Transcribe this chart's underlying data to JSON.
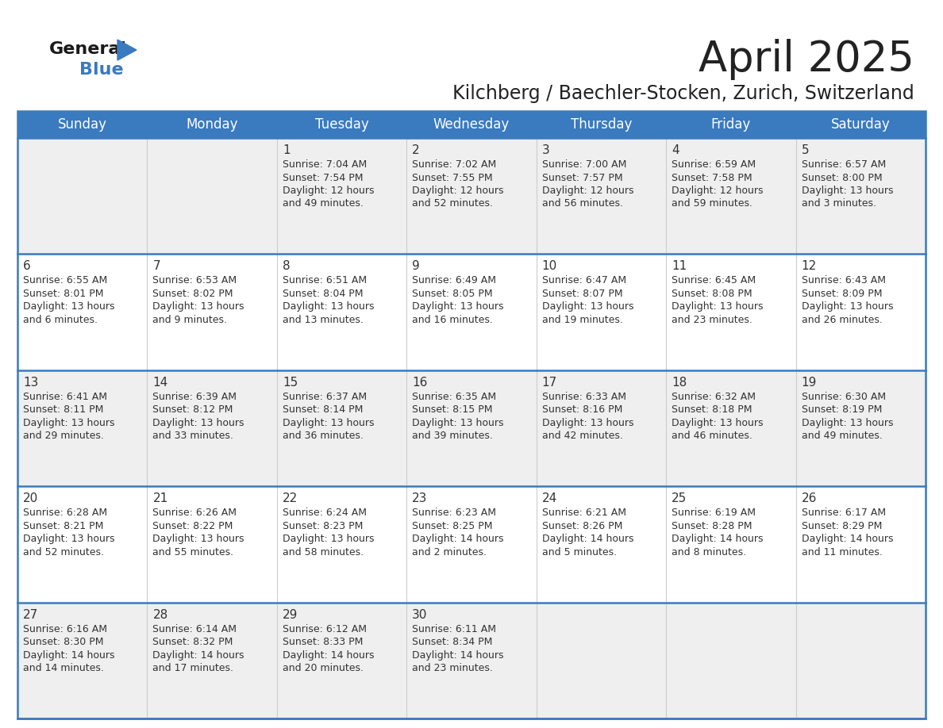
{
  "title": "April 2025",
  "subtitle": "Kilchberg / Baechler-Stocken, Zurich, Switzerland",
  "header_bg": "#3a7abf",
  "header_text": "#ffffff",
  "day_names": [
    "Sunday",
    "Monday",
    "Tuesday",
    "Wednesday",
    "Thursday",
    "Friday",
    "Saturday"
  ],
  "row_bg_odd": "#efefef",
  "row_bg_even": "#ffffff",
  "title_color": "#222222",
  "subtitle_color": "#222222",
  "day_number_color": "#333333",
  "info_color": "#333333",
  "divider_color": "#3a7abf",
  "logo_general_color": "#1a1a1a",
  "logo_blue_color": "#3a7abf",
  "logo_triangle_color": "#3a7abf",
  "calendar_data": [
    [
      {
        "day": null,
        "sunrise": null,
        "sunset": null,
        "daylight": null
      },
      {
        "day": null,
        "sunrise": null,
        "sunset": null,
        "daylight": null
      },
      {
        "day": 1,
        "sunrise": "7:04 AM",
        "sunset": "7:54 PM",
        "daylight": "12 hours\nand 49 minutes."
      },
      {
        "day": 2,
        "sunrise": "7:02 AM",
        "sunset": "7:55 PM",
        "daylight": "12 hours\nand 52 minutes."
      },
      {
        "day": 3,
        "sunrise": "7:00 AM",
        "sunset": "7:57 PM",
        "daylight": "12 hours\nand 56 minutes."
      },
      {
        "day": 4,
        "sunrise": "6:59 AM",
        "sunset": "7:58 PM",
        "daylight": "12 hours\nand 59 minutes."
      },
      {
        "day": 5,
        "sunrise": "6:57 AM",
        "sunset": "8:00 PM",
        "daylight": "13 hours\nand 3 minutes."
      }
    ],
    [
      {
        "day": 6,
        "sunrise": "6:55 AM",
        "sunset": "8:01 PM",
        "daylight": "13 hours\nand 6 minutes."
      },
      {
        "day": 7,
        "sunrise": "6:53 AM",
        "sunset": "8:02 PM",
        "daylight": "13 hours\nand 9 minutes."
      },
      {
        "day": 8,
        "sunrise": "6:51 AM",
        "sunset": "8:04 PM",
        "daylight": "13 hours\nand 13 minutes."
      },
      {
        "day": 9,
        "sunrise": "6:49 AM",
        "sunset": "8:05 PM",
        "daylight": "13 hours\nand 16 minutes."
      },
      {
        "day": 10,
        "sunrise": "6:47 AM",
        "sunset": "8:07 PM",
        "daylight": "13 hours\nand 19 minutes."
      },
      {
        "day": 11,
        "sunrise": "6:45 AM",
        "sunset": "8:08 PM",
        "daylight": "13 hours\nand 23 minutes."
      },
      {
        "day": 12,
        "sunrise": "6:43 AM",
        "sunset": "8:09 PM",
        "daylight": "13 hours\nand 26 minutes."
      }
    ],
    [
      {
        "day": 13,
        "sunrise": "6:41 AM",
        "sunset": "8:11 PM",
        "daylight": "13 hours\nand 29 minutes."
      },
      {
        "day": 14,
        "sunrise": "6:39 AM",
        "sunset": "8:12 PM",
        "daylight": "13 hours\nand 33 minutes."
      },
      {
        "day": 15,
        "sunrise": "6:37 AM",
        "sunset": "8:14 PM",
        "daylight": "13 hours\nand 36 minutes."
      },
      {
        "day": 16,
        "sunrise": "6:35 AM",
        "sunset": "8:15 PM",
        "daylight": "13 hours\nand 39 minutes."
      },
      {
        "day": 17,
        "sunrise": "6:33 AM",
        "sunset": "8:16 PM",
        "daylight": "13 hours\nand 42 minutes."
      },
      {
        "day": 18,
        "sunrise": "6:32 AM",
        "sunset": "8:18 PM",
        "daylight": "13 hours\nand 46 minutes."
      },
      {
        "day": 19,
        "sunrise": "6:30 AM",
        "sunset": "8:19 PM",
        "daylight": "13 hours\nand 49 minutes."
      }
    ],
    [
      {
        "day": 20,
        "sunrise": "6:28 AM",
        "sunset": "8:21 PM",
        "daylight": "13 hours\nand 52 minutes."
      },
      {
        "day": 21,
        "sunrise": "6:26 AM",
        "sunset": "8:22 PM",
        "daylight": "13 hours\nand 55 minutes."
      },
      {
        "day": 22,
        "sunrise": "6:24 AM",
        "sunset": "8:23 PM",
        "daylight": "13 hours\nand 58 minutes."
      },
      {
        "day": 23,
        "sunrise": "6:23 AM",
        "sunset": "8:25 PM",
        "daylight": "14 hours\nand 2 minutes."
      },
      {
        "day": 24,
        "sunrise": "6:21 AM",
        "sunset": "8:26 PM",
        "daylight": "14 hours\nand 5 minutes."
      },
      {
        "day": 25,
        "sunrise": "6:19 AM",
        "sunset": "8:28 PM",
        "daylight": "14 hours\nand 8 minutes."
      },
      {
        "day": 26,
        "sunrise": "6:17 AM",
        "sunset": "8:29 PM",
        "daylight": "14 hours\nand 11 minutes."
      }
    ],
    [
      {
        "day": 27,
        "sunrise": "6:16 AM",
        "sunset": "8:30 PM",
        "daylight": "14 hours\nand 14 minutes."
      },
      {
        "day": 28,
        "sunrise": "6:14 AM",
        "sunset": "8:32 PM",
        "daylight": "14 hours\nand 17 minutes."
      },
      {
        "day": 29,
        "sunrise": "6:12 AM",
        "sunset": "8:33 PM",
        "daylight": "14 hours\nand 20 minutes."
      },
      {
        "day": 30,
        "sunrise": "6:11 AM",
        "sunset": "8:34 PM",
        "daylight": "14 hours\nand 23 minutes."
      },
      {
        "day": null,
        "sunrise": null,
        "sunset": null,
        "daylight": null
      },
      {
        "day": null,
        "sunrise": null,
        "sunset": null,
        "daylight": null
      },
      {
        "day": null,
        "sunrise": null,
        "sunset": null,
        "daylight": null
      }
    ]
  ]
}
